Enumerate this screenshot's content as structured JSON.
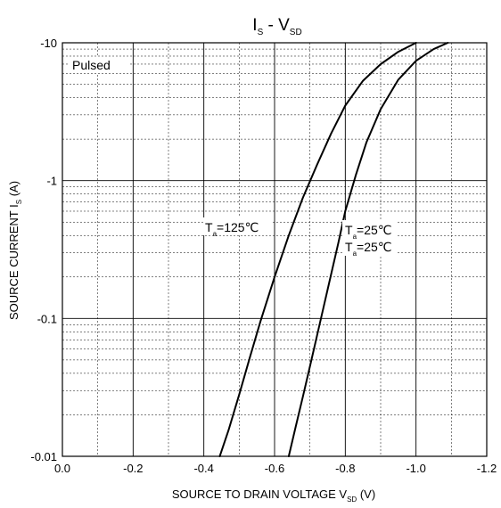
{
  "chart_data": {
    "type": "line",
    "title": {
      "main": "I",
      "sub1": "S",
      "sep": " - V",
      "sub2": "SD"
    },
    "xlabel": {
      "main": "SOURCE TO DRAIN VOLTAGE V",
      "sub": "SD",
      "tail": " (V)"
    },
    "ylabel": {
      "main": "SOURCE CURRENT I",
      "sub": "S",
      "tail": " (A)"
    },
    "xlim": [
      0.0,
      -1.2
    ],
    "ylim": [
      -0.01,
      -10
    ],
    "y_scale": "log",
    "grid": true,
    "x_ticks": [
      0.0,
      -0.2,
      -0.4,
      -0.6,
      -0.8,
      -1.0,
      -1.2
    ],
    "x_tick_labels": [
      "0.0",
      "-0.2",
      "-0.4",
      "-0.6",
      "-0.8",
      "-1.0",
      "-1.2"
    ],
    "y_ticks": [
      -0.01,
      -0.1,
      -1,
      -10
    ],
    "y_tick_labels": [
      "-0.01",
      "-0.1",
      "-1",
      "-10"
    ],
    "series": [
      {
        "name": "Ta=125°C",
        "color": "#000000",
        "x": [
          -0.445,
          -0.47,
          -0.5,
          -0.53,
          -0.56,
          -0.6,
          -0.64,
          -0.68,
          -0.72,
          -0.76,
          -0.8,
          -0.85,
          -0.9,
          -0.95,
          -1.0
        ],
        "y": [
          -0.01,
          -0.0155,
          -0.028,
          -0.052,
          -0.095,
          -0.2,
          -0.4,
          -0.75,
          -1.3,
          -2.2,
          -3.5,
          -5.3,
          -7.0,
          -8.6,
          -10.0
        ]
      },
      {
        "name": "Ta=25°C",
        "color": "#000000",
        "x": [
          -0.64,
          -0.66,
          -0.68,
          -0.7,
          -0.72,
          -0.74,
          -0.76,
          -0.78,
          -0.8,
          -0.83,
          -0.86,
          -0.9,
          -0.95,
          -1.0,
          -1.05,
          -1.09
        ],
        "y": [
          -0.01,
          -0.0165,
          -0.027,
          -0.045,
          -0.075,
          -0.125,
          -0.21,
          -0.35,
          -0.6,
          -1.1,
          -1.9,
          -3.3,
          -5.4,
          -7.4,
          -9.0,
          -10.0
        ]
      }
    ],
    "annotations": [
      {
        "main": "Pulsed",
        "sub": ""
      },
      {
        "main": "T",
        "sub": "a",
        "tail": "=125℃"
      },
      {
        "main": "T",
        "sub": "a",
        "tail": "=25℃"
      },
      {
        "main": "T",
        "sub": "a",
        "tail": "=25℃"
      }
    ]
  }
}
